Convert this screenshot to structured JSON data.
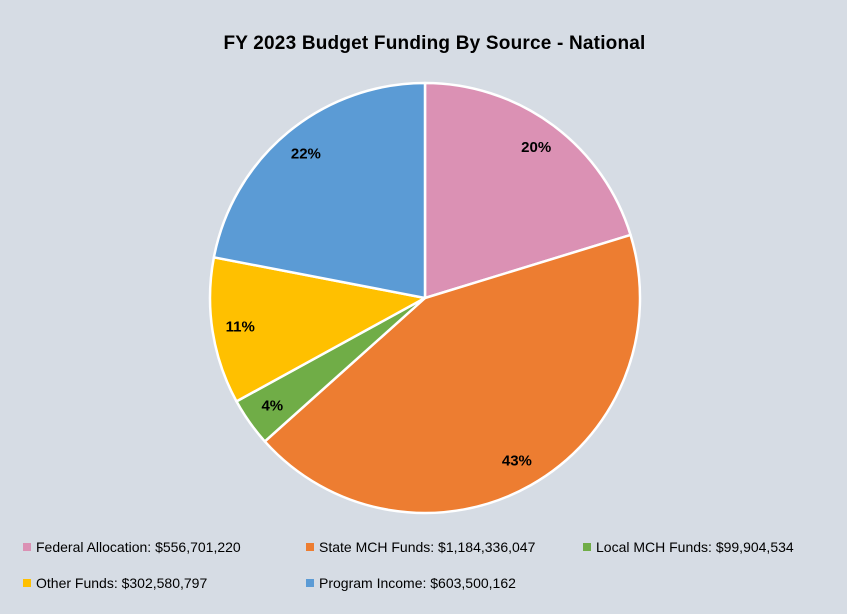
{
  "title": "FY 2023 Budget Funding By Source - National",
  "background_color": "#D6DCE4",
  "chart_data": {
    "type": "pie",
    "title": "FY 2023 Budget Funding By Source - National",
    "direction": "clockwise",
    "start_angle_deg": 0,
    "slice_border_color": "#FFFFFF",
    "label_radius_fraction": 0.87,
    "legend_position": "bottom",
    "slices": [
      {
        "name": "Federal Allocation",
        "value": 556701220,
        "percent_label": "20%",
        "color": "#DB91B4",
        "legend_label": "Federal Allocation: $556,701,220"
      },
      {
        "name": "State MCH Funds",
        "value": 1184336047,
        "percent_label": "43%",
        "color": "#ED7D31",
        "legend_label": "State MCH Funds: $1,184,336,047"
      },
      {
        "name": "Local MCH Funds",
        "value": 99904534,
        "percent_label": "4%",
        "color": "#70AD47",
        "legend_label": "Local MCH Funds: $99,904,534"
      },
      {
        "name": "Other Funds",
        "value": 302580797,
        "percent_label": "11%",
        "color": "#FFC000",
        "legend_label": "Other Funds: $302,580,797"
      },
      {
        "name": "Program Income",
        "value": 603500162,
        "percent_label": "22%",
        "color": "#5B9BD5",
        "legend_label": "Program Income: $603,500,162"
      }
    ]
  }
}
